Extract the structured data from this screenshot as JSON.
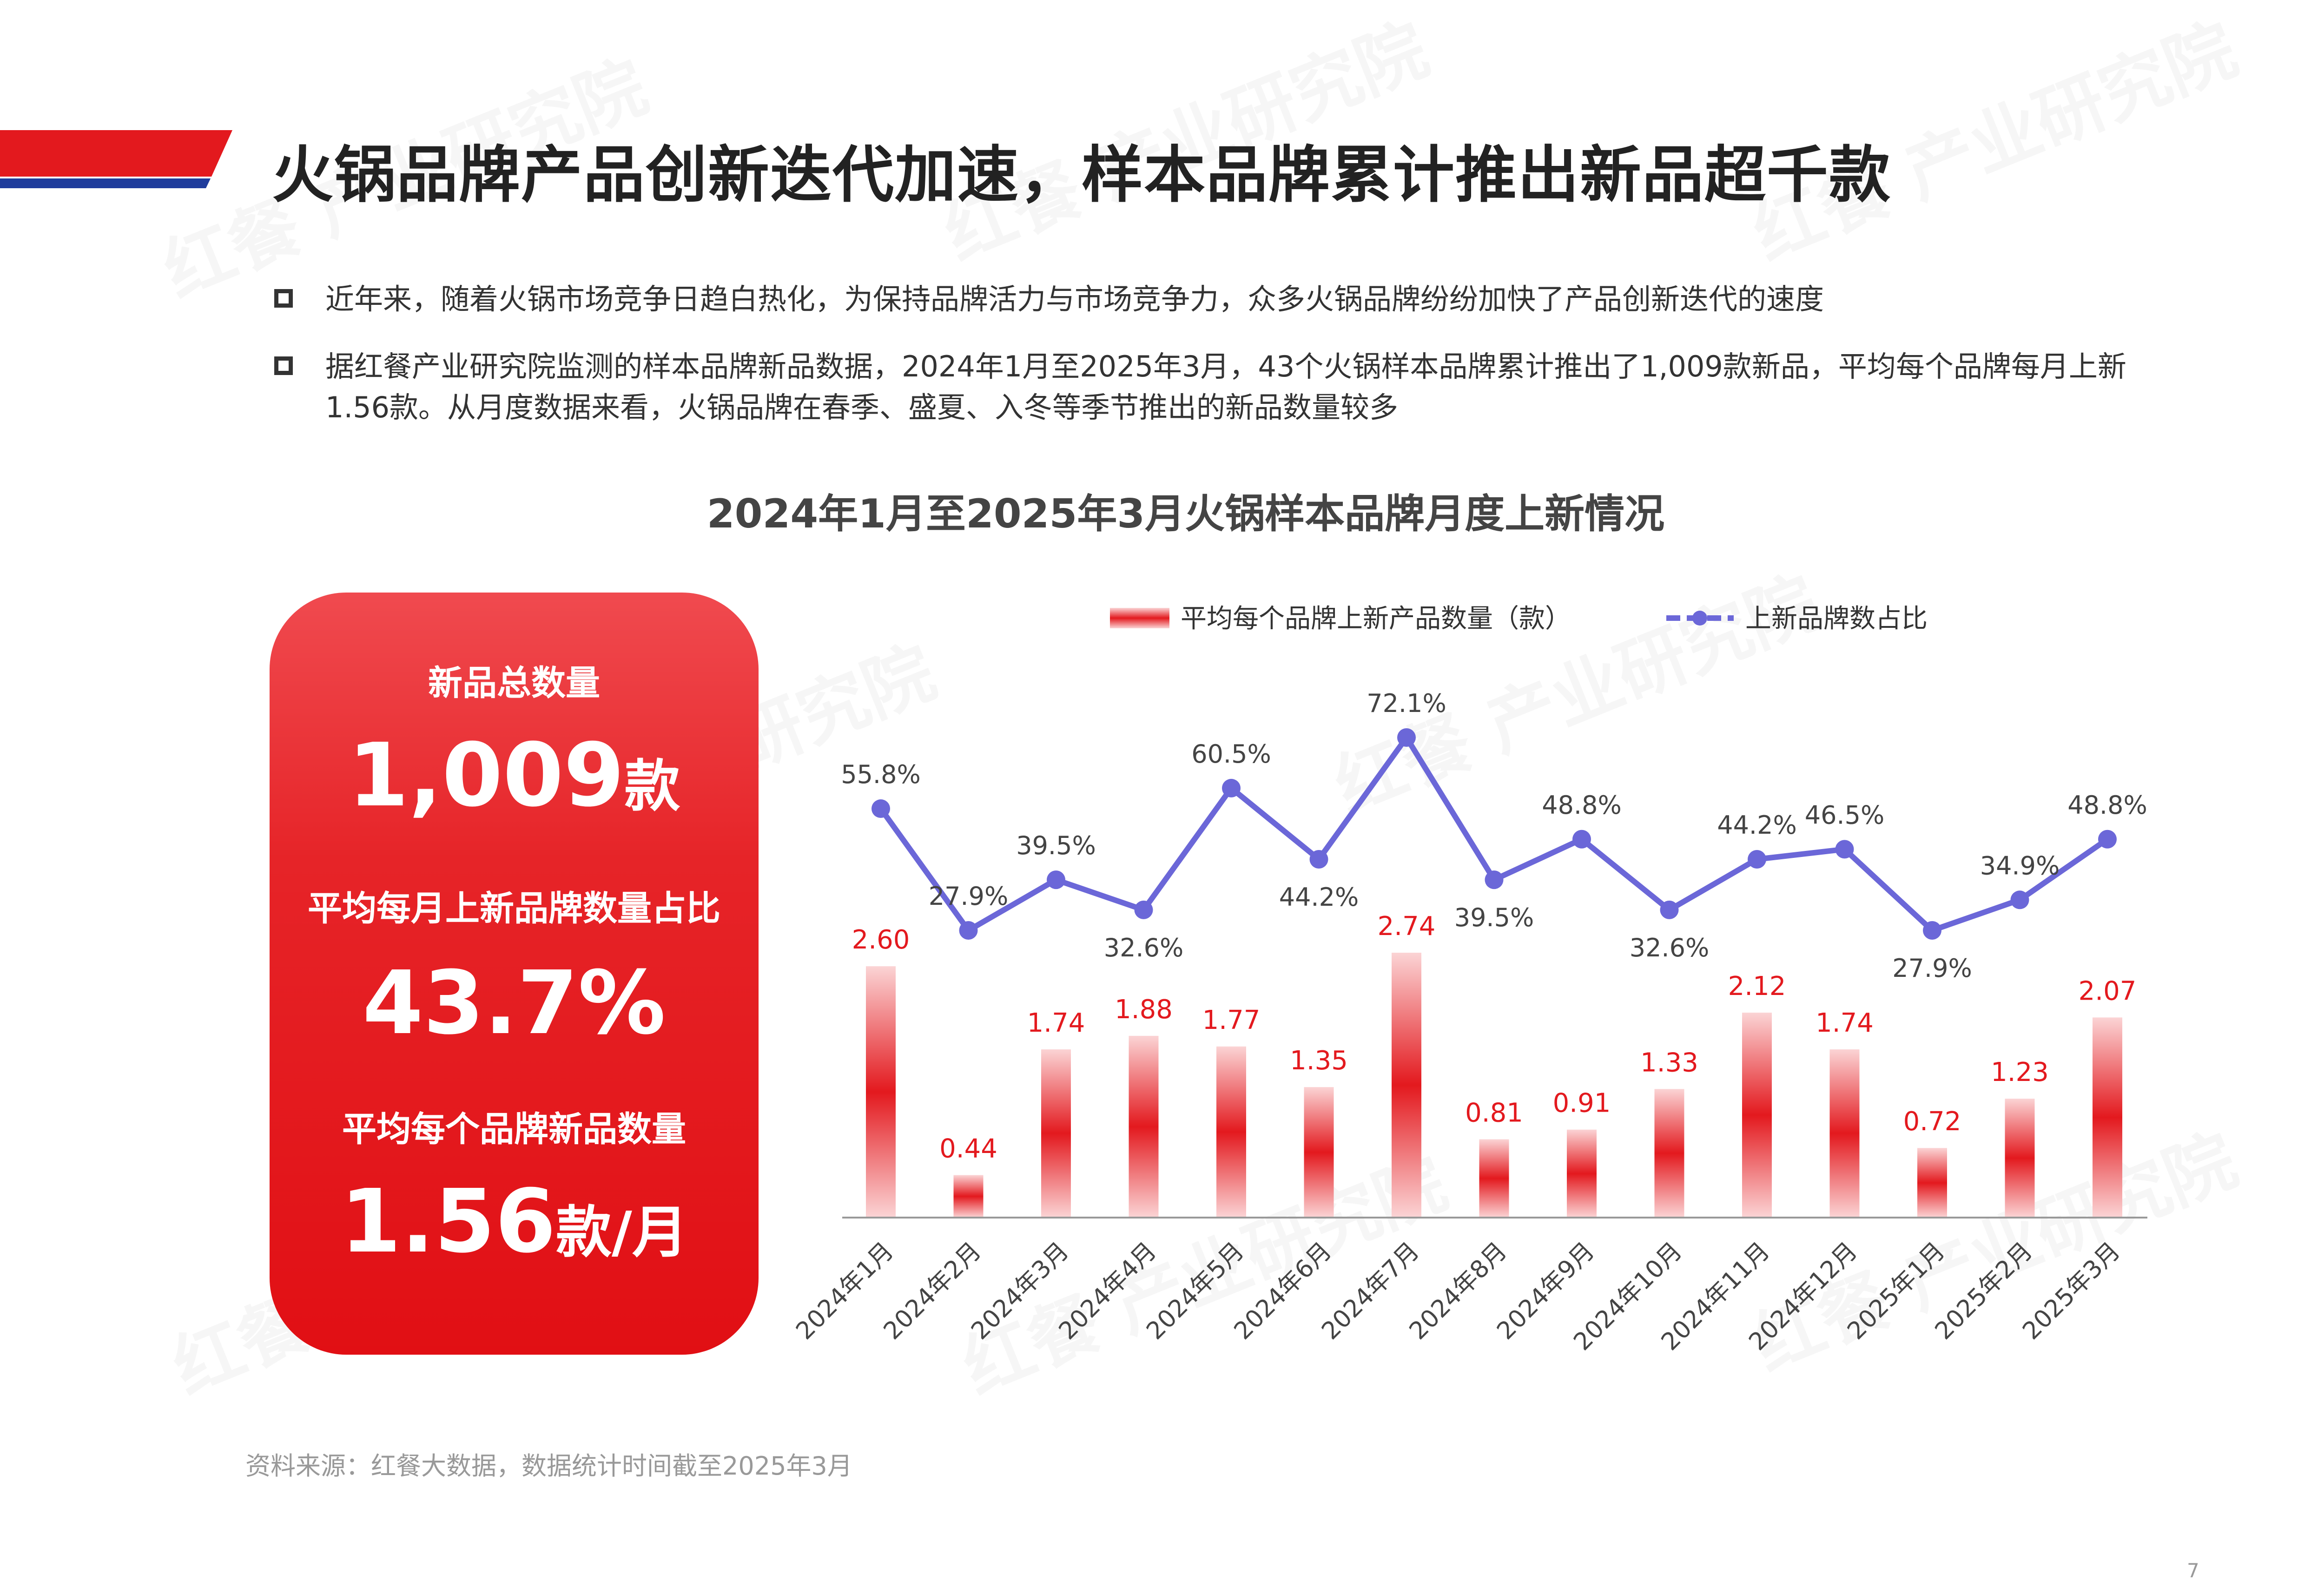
{
  "page": {
    "title": "火锅品牌产品创新迭代加速，样本品牌累计推出新品超千款",
    "bullets": [
      "近年来，随着火锅市场竞争日趋白热化，为保持品牌活力与市场竞争力，众多火锅品牌纷纷加快了产品创新迭代的速度",
      "据红餐产业研究院监测的样本品牌新品数据，2024年1月至2025年3月，43个火锅样本品牌累计推出了1,009款新品，平均每个品牌每月上新1.56款。从月度数据来看，火锅品牌在春季、盛夏、入冬等季节推出的新品数量较多"
    ],
    "source": "资料来源：红餐大数据，数据统计时间截至2025年3月",
    "page_number": "7",
    "watermark": "红餐 产业研究院"
  },
  "kpi": {
    "total_label": "新品总数量",
    "total_value": "1,009",
    "total_unit": "款",
    "ratio_label": "平均每月上新品牌数量占比",
    "ratio_value": "43.7%",
    "avg_label": "平均每个品牌新品数量",
    "avg_value": "1.56",
    "avg_unit": "款/月"
  },
  "colors": {
    "brand_red": "#e3191e",
    "line_purple": "#6b67d8",
    "bar_label_red": "#e3191e",
    "text_dark": "#333333",
    "banner_blue": "#1f3c9c"
  },
  "chart_data": {
    "type": "bar+line",
    "title": "2024年1月至2025年3月火锅样本品牌月度上新情况",
    "categories": [
      "2024年1月",
      "2024年2月",
      "2024年3月",
      "2024年4月",
      "2024年5月",
      "2024年6月",
      "2024年7月",
      "2024年8月",
      "2024年9月",
      "2024年10月",
      "2024年11月",
      "2024年12月",
      "2025年1月",
      "2025年2月",
      "2025年3月"
    ],
    "series": [
      {
        "name": "平均每个品牌上新产品数量（款）",
        "type": "bar",
        "values": [
          2.6,
          0.44,
          1.74,
          1.88,
          1.77,
          1.35,
          2.74,
          0.81,
          0.91,
          1.33,
          2.12,
          1.74,
          0.72,
          1.23,
          2.07
        ],
        "labels": [
          "2.60",
          "0.44",
          "1.74",
          "1.88",
          "1.77",
          "1.35",
          "2.74",
          "0.81",
          "0.91",
          "1.33",
          "2.12",
          "1.74",
          "0.72",
          "1.23",
          "2.07"
        ]
      },
      {
        "name": "上新品牌数占比",
        "type": "line",
        "values": [
          55.8,
          27.9,
          39.5,
          32.6,
          60.5,
          44.2,
          72.1,
          39.5,
          48.8,
          32.6,
          44.2,
          46.5,
          27.9,
          34.9,
          48.8
        ],
        "labels": [
          "55.8%",
          "27.9%",
          "39.5%",
          "32.6%",
          "60.5%",
          "44.2%",
          "72.1%",
          "39.5%",
          "48.8%",
          "32.6%",
          "44.2%",
          "46.5%",
          "27.9%",
          "34.9%",
          "48.8%"
        ],
        "label_positions": [
          "above",
          "above",
          "above",
          "below",
          "above",
          "below",
          "above",
          "below",
          "above",
          "below",
          "above",
          "above",
          "below",
          "above",
          "above"
        ]
      }
    ],
    "legend_position": "top",
    "grid": false,
    "axis_rotation_deg": -45
  }
}
